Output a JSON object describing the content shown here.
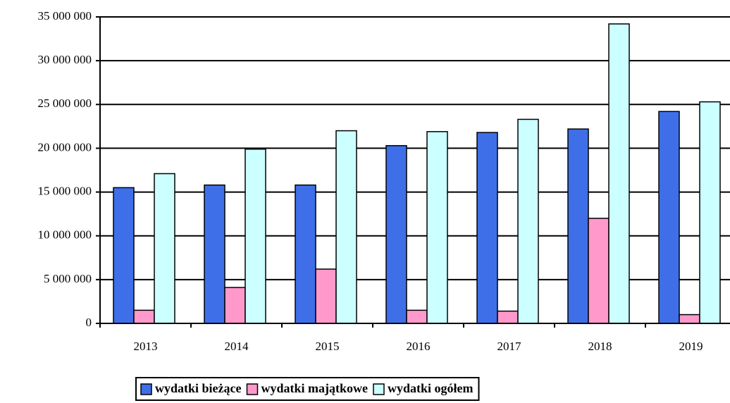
{
  "chart_data": {
    "type": "bar",
    "categories": [
      "2013",
      "2014",
      "2015",
      "2016",
      "2017",
      "2018",
      "2019"
    ],
    "series": [
      {
        "name": "wydatki bieżące",
        "color": "#3f6fe8",
        "values": [
          15500000,
          15800000,
          15800000,
          20300000,
          21800000,
          22200000,
          24200000
        ]
      },
      {
        "name": "wydatki majątkowe",
        "color": "#ff99cc",
        "values": [
          1500000,
          4100000,
          6200000,
          1500000,
          1400000,
          12000000,
          1000000
        ]
      },
      {
        "name": "wydatki ogółem",
        "color": "#ccffff",
        "values": [
          17100000,
          19900000,
          22000000,
          21900000,
          23300000,
          34200000,
          25300000
        ]
      }
    ],
    "ylim": [
      0,
      35000000
    ],
    "yticks": [
      0,
      {
        "value": 5000000,
        "label": "5 000 000"
      },
      {
        "value": 10000000,
        "label": "10 000 000"
      },
      {
        "value": 15000000,
        "label": "15 000 000"
      },
      {
        "value": 20000000,
        "label": "20 000 000"
      },
      {
        "value": 25000000,
        "label": "25 000 000"
      },
      {
        "value": 30000000,
        "label": "30 000 000"
      },
      {
        "value": 35000000,
        "label": "35 000 000"
      }
    ],
    "grid": true,
    "legend": "bottom"
  }
}
